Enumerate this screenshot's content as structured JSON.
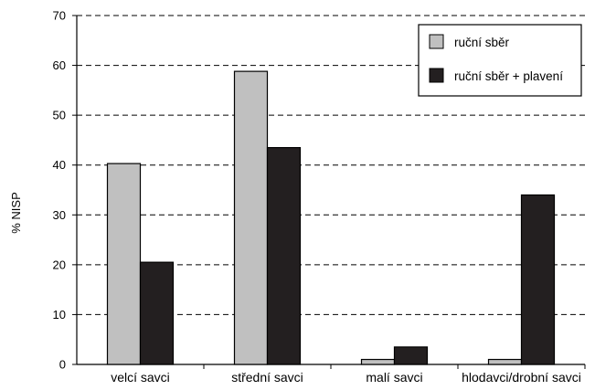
{
  "chart_data": {
    "type": "bar",
    "ylabel": "% NISP",
    "xlabel": "",
    "ylim": [
      0,
      70
    ],
    "yticks": [
      0,
      10,
      20,
      30,
      40,
      50,
      60,
      70
    ],
    "grid": "dashed-horizontal",
    "legend_position": "top-right",
    "categories": [
      "velcí savci",
      "střední savci",
      "malí savci",
      "hlodavci/drobní savci"
    ],
    "series": [
      {
        "name": "ruční sběr",
        "color": "#c0c0c0",
        "values": [
          40.3,
          58.8,
          1.0,
          1.0
        ]
      },
      {
        "name": "ruční sběr + plavení",
        "color": "#231f20",
        "values": [
          20.5,
          43.5,
          3.5,
          34.0
        ]
      }
    ]
  }
}
